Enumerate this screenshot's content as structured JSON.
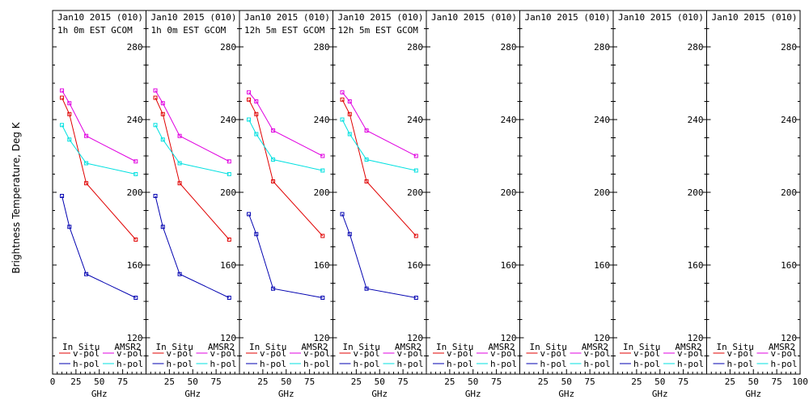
{
  "figure": {
    "ylabel": "Brightness Temperature, Deg K",
    "xlabel": "GHz"
  },
  "colors": {
    "v_insitu": "#e00000",
    "h_insitu": "#0000b0",
    "v_amsr2": "#e000e0",
    "h_amsr2": "#00e0e0",
    "axis": "#000000"
  },
  "legend": {
    "in_situ": "In Situ",
    "amsr2": "AMSR2",
    "vpol": "v-pol",
    "hpol": "h-pol"
  },
  "chart_data": [
    {
      "type": "line",
      "header": [
        "Jan10 2015 (010)",
        "1h 0m EST GCOM"
      ],
      "xlim": [
        0,
        100
      ],
      "ylim": [
        110,
        290
      ],
      "xticks": [
        "0",
        "25",
        "50",
        "75"
      ],
      "yticks": [
        "120",
        "160",
        "200",
        "240",
        "280"
      ],
      "xlabel": "GHz",
      "series": [
        {
          "key": "v_insitu",
          "x": [
            10,
            18,
            36,
            89
          ],
          "y": [
            252,
            243,
            205,
            174
          ]
        },
        {
          "key": "h_insitu",
          "x": [
            10,
            18,
            36,
            89
          ],
          "y": [
            198,
            181,
            155,
            142
          ]
        },
        {
          "key": "v_amsr2",
          "x": [
            10,
            18,
            36,
            89
          ],
          "y": [
            256,
            249,
            231,
            217
          ]
        },
        {
          "key": "h_amsr2",
          "x": [
            10,
            18,
            36,
            89
          ],
          "y": [
            237,
            229,
            216,
            210
          ]
        }
      ]
    },
    {
      "type": "line",
      "header": [
        "Jan10 2015 (010)",
        "1h 0m EST GCOM"
      ],
      "xlim": [
        0,
        100
      ],
      "ylim": [
        110,
        290
      ],
      "xticks": [
        "25",
        "50",
        "75"
      ],
      "yticks": [
        "120",
        "160",
        "200",
        "240",
        "280"
      ],
      "xlabel": "GHz",
      "series": [
        {
          "key": "v_insitu",
          "x": [
            10,
            18,
            36,
            89
          ],
          "y": [
            252,
            243,
            205,
            174
          ]
        },
        {
          "key": "h_insitu",
          "x": [
            10,
            18,
            36,
            89
          ],
          "y": [
            198,
            181,
            155,
            142
          ]
        },
        {
          "key": "v_amsr2",
          "x": [
            10,
            18,
            36,
            89
          ],
          "y": [
            256,
            249,
            231,
            217
          ]
        },
        {
          "key": "h_amsr2",
          "x": [
            10,
            18,
            36,
            89
          ],
          "y": [
            237,
            229,
            216,
            210
          ]
        }
      ]
    },
    {
      "type": "line",
      "header": [
        "Jan10 2015 (010)",
        "12h 5m EST GCOM"
      ],
      "xlim": [
        0,
        100
      ],
      "ylim": [
        110,
        290
      ],
      "xticks": [
        "25",
        "50",
        "75"
      ],
      "yticks": [
        "120",
        "160",
        "200",
        "240",
        "280"
      ],
      "xlabel": "GHz",
      "series": [
        {
          "key": "v_insitu",
          "x": [
            10,
            18,
            36,
            89
          ],
          "y": [
            251,
            243,
            206,
            176
          ]
        },
        {
          "key": "h_insitu",
          "x": [
            10,
            18,
            36,
            89
          ],
          "y": [
            188,
            177,
            147,
            142
          ]
        },
        {
          "key": "v_amsr2",
          "x": [
            10,
            18,
            36,
            89
          ],
          "y": [
            255,
            250,
            234,
            220
          ]
        },
        {
          "key": "h_amsr2",
          "x": [
            10,
            18,
            36,
            89
          ],
          "y": [
            240,
            232,
            218,
            212
          ]
        }
      ]
    },
    {
      "type": "line",
      "header": [
        "Jan10 2015 (010)",
        "12h 5m EST GCOM"
      ],
      "xlim": [
        0,
        100
      ],
      "ylim": [
        110,
        290
      ],
      "xticks": [
        "25",
        "50",
        "75"
      ],
      "yticks": [
        "120",
        "160",
        "200",
        "240",
        "280"
      ],
      "xlabel": "GHz",
      "series": [
        {
          "key": "v_insitu",
          "x": [
            10,
            18,
            36,
            89
          ],
          "y": [
            251,
            243,
            206,
            176
          ]
        },
        {
          "key": "h_insitu",
          "x": [
            10,
            18,
            36,
            89
          ],
          "y": [
            188,
            177,
            147,
            142
          ]
        },
        {
          "key": "v_amsr2",
          "x": [
            10,
            18,
            36,
            89
          ],
          "y": [
            255,
            250,
            234,
            220
          ]
        },
        {
          "key": "h_amsr2",
          "x": [
            10,
            18,
            36,
            89
          ],
          "y": [
            240,
            232,
            218,
            212
          ]
        }
      ]
    },
    {
      "type": "line",
      "header": [
        "Jan10 2015 (010)",
        ""
      ],
      "xlim": [
        0,
        100
      ],
      "ylim": [
        110,
        290
      ],
      "xticks": [
        "25",
        "50",
        "75"
      ],
      "yticks": [
        "120",
        "160",
        "200",
        "240",
        "280"
      ],
      "xlabel": "GHz",
      "series": []
    },
    {
      "type": "line",
      "header": [
        "Jan10 2015 (010)",
        ""
      ],
      "xlim": [
        0,
        100
      ],
      "ylim": [
        110,
        290
      ],
      "xticks": [
        "25",
        "50",
        "75"
      ],
      "yticks": [
        "120",
        "160",
        "200",
        "240",
        "280"
      ],
      "xlabel": "GHz",
      "series": []
    },
    {
      "type": "line",
      "header": [
        "Jan10 2015 (010)",
        ""
      ],
      "xlim": [
        0,
        100
      ],
      "ylim": [
        110,
        290
      ],
      "xticks": [
        "25",
        "50",
        "75"
      ],
      "yticks": [
        "120",
        "160",
        "200",
        "240",
        "280"
      ],
      "xlabel": "GHz",
      "series": []
    },
    {
      "type": "line",
      "header": [
        "Jan10 2015 (010)",
        ""
      ],
      "xlim": [
        0,
        100
      ],
      "ylim": [
        110,
        290
      ],
      "xticks": [
        "25",
        "50",
        "75",
        "100"
      ],
      "yticks": [
        "120",
        "160",
        "200",
        "240",
        "280"
      ],
      "xlabel": "GHz",
      "series": []
    }
  ]
}
